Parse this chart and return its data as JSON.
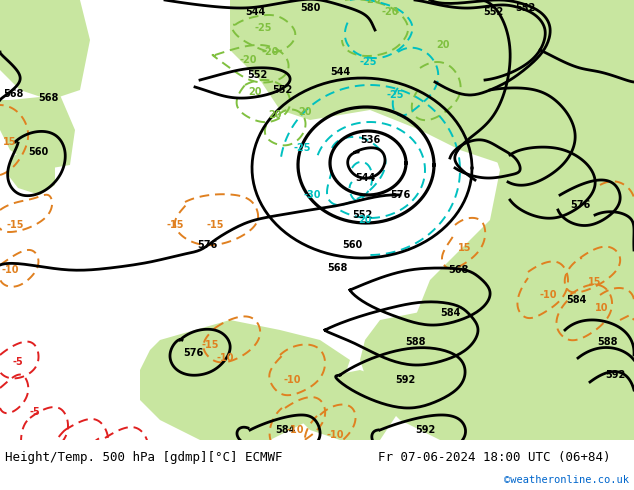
{
  "title_left": "Height/Temp. 500 hPa [gdmp][°C] ECMWF",
  "title_right": "Fr 07-06-2024 18:00 UTC (06+84)",
  "credit": "©weatheronline.co.uk",
  "bg_land": "#c8e6a0",
  "bg_sea": "#d8d8d8",
  "bg_coast": "#b0b0b0",
  "contour_color": "#000000",
  "orange_color": "#e08020",
  "cyan_color": "#00c0c0",
  "green_color": "#80c040",
  "red_color": "#e02020",
  "font_size_title": 9,
  "font_size_label": 7,
  "fig_width": 6.34,
  "fig_height": 4.9,
  "dpi": 100
}
